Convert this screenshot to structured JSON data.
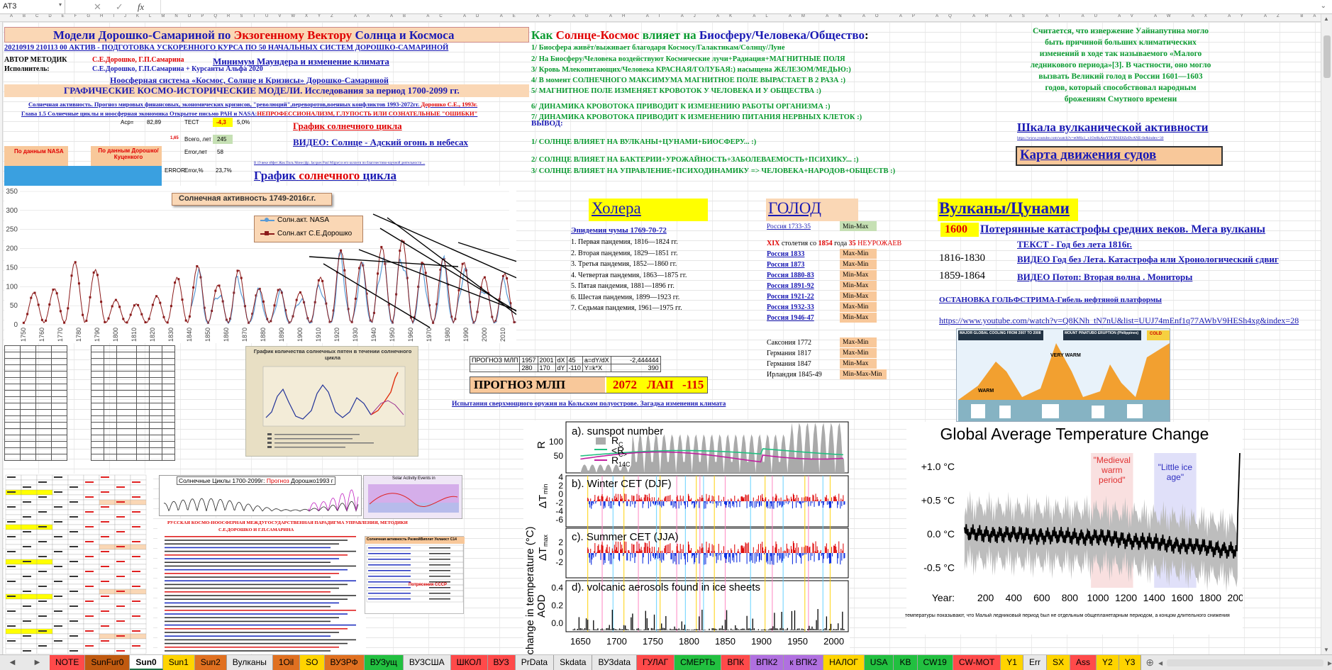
{
  "formula_bar": {
    "cell_ref": "AT3"
  },
  "headers": {
    "title1a": "Модели Дорошко-Самариной по",
    "title1b": "Экзогенному Вектору",
    "title1c": "Солнца и Космоса",
    "line2": "20210919 210113 00 АКТИВ - ПОДГОТОВКА УСКОРЕННОГО КУРСА ПО 50 НАЧАЛЬНЫХ СИСТЕМ ДОРОШКО-САМАРИНОЙ",
    "author_lbl": "АВТОР МЕТОДИК",
    "author_val": "С.Е.Дорошко, Г.П.Самарина",
    "exec_lbl": "Исполнитель:",
    "exec_val": "С.Е.Дорошко, Г.П.Самарина + Курсанты Альфа 2020",
    "maunder": "Минимум Маундера и изменение климата",
    "noosphere": "Ноосферная система «Космос, Солнце и Кризисы» Дорошко-Самариной",
    "graphic_title": "ГРАФИЧЕСКИЕ КОСМО-ИСТОРИЧЕСКИЕ МОДЕЛИ. Исследования за период 1700-2099 гг.",
    "small1": "Солнечная активность. Прогноз мировых финансовых, экономических кризисов, \"революций\",переворотов,военных конфликтов 1993-2072гг.",
    "small1b": "Дорошко С.Е., 1993г.",
    "small2": "Глава 1.5 Солнечные циклы и ноосферная экономика Открытое письмо РАН и NASA:",
    "small2b": "НЕПРОФЕССИОНАЛИЗМ, Г.ЛУПОСТЬ ИЛИ СОЗНАТЕЛЬНЫЕ \"ОШИБКИ\"",
    "graf1": "График солнечного цикла",
    "video1": "ВИДЕО: Солнце - Адский огонь в небесах",
    "graf2a": "График",
    "graf2b": "солнечного",
    "graf2c": "цикла",
    "tiny_note": "В 19 веке эйфет Жак Поль Моне (фр. Jacques Paul Migne) и его коллеги по благочестиво-научной деятельности ..."
  },
  "stats": {
    "acp_lbl": "Аср=",
    "acp_val": "82,89",
    "test_lbl": "ТЕСТ",
    "test_val": "-4,3",
    "test_pct": "5,0%",
    "total_lbl": "Всего, лет",
    "total_val": "245",
    "err_lbl": "Error,лет",
    "err_val": "58",
    "err_word": "ERROR",
    "errpct_lbl": "Error,%",
    "errpct_val": "23,7%",
    "side_num": "1,65"
  },
  "nasa_label": "По данным NASA",
  "kuvenkov_label": "По данным Дорошко/Куценкого",
  "mid_title": {
    "a": "Как",
    "b": "Солнце-Космос",
    "c": "влияет на",
    "d": "Биосферу/Человека/Общество",
    "e": ":"
  },
  "mid_lines": [
    "1/ Биосфера живёт/выживает благодаря Космосу/Галактикам/Солнцу/Луне",
    "2/ На Биосферу/Человека воздействуют Космические лучи+Радиация+МАГНИТНЫЕ ПОЛЯ",
    "3/ Кровь Млекопитающих/Человека КРАСНАЯ/ГОЛУБАЯ:) насыщена ЖЕЛЕЗОМ/МЕДЬЮ:)",
    "4/ В момент СОЛНЕЧНОГО МАКСИМУМА МАГНИТНОЕ ПОЛЕ ВЫРАСТАЕТ В 2 РАЗА :)",
    "5/ МАГНИТНОЕ ПОЛЕ ИЗМЕНЯЕТ КРОВОТОК У ЧЕЛОВЕКА И У ОБЩЕСТВА :)",
    "6/ ДИНАМИКА КРОВОТОКА ПРИВОДИТ К ИЗМЕНЕНИЮ РАБОТЫ ОРГАНИЗМА :)",
    "7/ ДИНАМИКА КРОВОТОКА ПРИВОДИТ К ИЗМЕНЕНИЮ ПИТАНИЯ НЕРВНЫХ КЛЕТОК :)"
  ],
  "vyvod": "ВЫВОД:",
  "vyvod_lines": [
    "1/ СОЛНЦЕ ВЛИЯЕТ НА ВУЛКАНЫ+ЦУНАМИ+БИОСФЕРУ... :)",
    "2/ СОЛНЦЕ ВЛИЯЕТ НА БАКТЕРИИ+УРОЖАЙНОСТЬ+ЗАБОЛЕВАЕМОСТЬ+ПСИХИКУ... :)",
    "3/ СОЛНЦЕ ВЛИЯЕТ НА УПРАВЛЕНИЕ+ПСИХОДИНАМИКУ => ЧЕЛОВЕКА+НАРОДОВ+ОБЩЕСТВ :)"
  ],
  "right_text": [
    "Считается, что извержение Уайнапутина могло",
    "быть причиной больших климатических",
    "изменений в ходе так называемого «Малого",
    "ледникового периода»[3]. В частности, оно могло",
    "вызвать Великий голод в России 1601—1603",
    "годов, который способствовал народным",
    "брожениям Смутного времени"
  ],
  "volcano_scale": "Шкала вулканической активности",
  "volcano_url": "https://www.youtube.com/watch?v=etM6z1_x1Oo0kAnrYfVRNiE8ZeDvANE-0e&index=30",
  "ship_map": "Карта движения судов",
  "solar_chart": {
    "title": "Солнечная активность 1749-2016г.г.",
    "legend": [
      "Солн.акт. NASA",
      "Солн.акт С.Е.Дорошко"
    ],
    "yticks": [
      "350",
      "300",
      "250",
      "200",
      "150",
      "100",
      "50",
      "0"
    ],
    "xticks": [
      "1750",
      "1760",
      "1770",
      "1780",
      "1790",
      "1800",
      "1810",
      "1820",
      "1830",
      "1840",
      "1850",
      "1860",
      "1870",
      "1880",
      "1890",
      "1900",
      "1910",
      "1920",
      "1930",
      "1940",
      "1950",
      "1960",
      "1970",
      "1980",
      "1990",
      "2000",
      "2010"
    ]
  },
  "cholera": {
    "title": "Холера",
    "subtitle": "Эпидемия чумы 1769-70-72",
    "items": [
      "1. Первая пандемия, 1816—1824 гг.",
      "2. Вторая пандемия, 1829—1851 гг.",
      "3. Третья пандемия, 1852—1860 гг.",
      "4. Четвертая пандемия, 1863—1875 гг.",
      "5. Пятая пандемия, 1881—1896 гг.",
      "6. Шестая пандемия, 1899—1923 гг.",
      "7. Седьмая пандемия, 1961—1975 гг."
    ]
  },
  "famine": {
    "title": "ГОЛОД",
    "russia_1733": "Россия 1733-35",
    "minmax": "Min-Max",
    "xix_a": "XIX",
    "xix_b": "столетия со",
    "xix_c": "1854",
    "xix_d": "года",
    "xix_e": "35",
    "xix_f": "НЕУРОЖАЕВ",
    "rows": [
      [
        "Россия 1833",
        "Max-Min"
      ],
      [
        "Россия 1873",
        "Max-Min"
      ],
      [
        "Россия 1880-83",
        "Min-Max"
      ],
      [
        "Россия 1891-92",
        "Min-Max"
      ],
      [
        "Россия 1921-22",
        "Min-Max"
      ],
      [
        "Россия 1932-33",
        "Max-Min"
      ],
      [
        "Россия 1946-47",
        "Min-Max"
      ]
    ],
    "plain_rows": [
      [
        "Саксония 1772",
        "Max-Min"
      ],
      [
        "Германия 1817",
        "Max-Min"
      ],
      [
        "Германия 1847",
        "Min-Max"
      ],
      [
        "Ирландия 1845-49",
        "Min-Max-Min"
      ]
    ]
  },
  "volcanoes": {
    "title": "Вулканы/Цунами",
    "year": "1600",
    "lost": "Потерянные катастрофы средних веков. Мега вулканы",
    "text_link": "ТЕКСТ - Год без лета 1816г.",
    "r1_year": "1816-1830",
    "r1_link": "ВИДЕО Год без Лета. Катастрофа или Хронологический сдвиг",
    "r2_year": "1859-1864",
    "r2_link": "ВИДЕО Потоп: Вторая волна . Мониторы",
    "gulf": "ОСТАНОВКА ГОЛЬФСТРИМА-Гибель нефтяной платформы",
    "yt": "https://www.youtube.com/watch?v=Q8KNh_tN7nU&list=UUJ74mEnf1q77AWbV9HESh4xg&index=28"
  },
  "forecast": {
    "lbl": "ПРОГНОЗ МЛП",
    "a": "1957",
    "b": "2001",
    "dx": "dX",
    "v45": "45",
    "adydx": "a=dY/dX",
    "v1": "-2,444444",
    "c": "280",
    "d": "170",
    "dy": "dY",
    "v110": "-110",
    "ykx": "Y=k*X",
    "v390": "390",
    "big_lbl": "ПРОГНОЗ МЛП",
    "big_year": "2072",
    "lap": "ЛАП",
    "big_val": "-115"
  },
  "kola": "Испытания сверхмощного оружия на Кольском полуострове. Загадка изменения климата",
  "sunspot_thumb": {
    "title": "График количества солнечных пятен в течении солнечного цикла"
  },
  "cycles_thumb": {
    "title_a": "Солнечные Циклы 1700-2099г:",
    "title_b": "Прогноз",
    "title_c": "Дорошко1993 г"
  },
  "activity_thumb": {
    "title": "Solar Activity Events in"
  },
  "doc_thumb": {
    "title": "РУССКАЯ КОСМО-НООСФЕРНАЯ МЕЖДУГОСУДАРСТВЕННАЯ ПАРАДИГМА УПРАВЛЕНИЯ, МЕТОДИКИ",
    "sub": "С.Е.ДОРОШКО И Г.П.САМАРИНА",
    "table_title": "Солнечная активность РазвойВиплит Уклаюст С14",
    "red_lbl": "Потрясения СССР"
  },
  "eruption_thumb": {
    "title": "MAJOR GLOBAL COOLING FROM 2007 TO 2008",
    "sub": "MOUNT PINATUBO ERUPTION (Philippines)",
    "warm": "WARM",
    "very_warm": "VERY WARM",
    "cold": "COLD"
  },
  "cet_panels": {
    "a": "a). sunspot number",
    "b": "b). Winter CET (DJF)",
    "c": "c). Summer CET (JJA)",
    "d": "d). volcanic aerosols found in ice sheets",
    "ylabel_main": "change in temperature (°C)",
    "r_lbl": "R",
    "aod_lbl": "AOD",
    "a_ticks": [
      "100",
      "50"
    ],
    "b_ticks": [
      "4",
      "2",
      "0",
      "-2",
      "-4",
      "-6"
    ],
    "c_ticks": [
      "2",
      "0",
      "-2"
    ],
    "d_ticks": [
      "0.4",
      "0.2",
      "0.0"
    ],
    "xticks": [
      "1650",
      "1700",
      "1750",
      "1800",
      "1850",
      "1900",
      "1950",
      "2000"
    ],
    "legend": [
      "R",
      "<R",
      "R"
    ],
    "legend_sub": [
      "C",
      "C>",
      "14C"
    ],
    "dt_min": "ΔT",
    "dt_min_sub": "min",
    "dt_max": "ΔT",
    "dt_max_sub": "max"
  },
  "temp_chart": {
    "title": "Global Average Temperature Change",
    "yticks": [
      "+1.0 °C",
      "+0.5 °C",
      "0.0 °C",
      "-0.5 °C"
    ],
    "xlabel": "Year:",
    "xticks": [
      "200",
      "400",
      "600",
      "800",
      "1000",
      "1200",
      "1400",
      "1600",
      "1800",
      "2000"
    ],
    "medieval": "\"Medieval warm period\"",
    "little": "\"Little ice age\"",
    "caption": "температуры показывают, что Малый ледниковый период был не отдельным общепланетарным периодом, а концом длительного снижения"
  },
  "tabs": [
    "NOTE",
    "SunFur0",
    "Sun0",
    "Sun1",
    "Sun2",
    "Вулканы",
    "1Oil",
    "SO",
    "ВУЗРФ",
    "ВУЗущ",
    "ВУЗСША",
    "ШКОЛ",
    "ВУЗ",
    "PrData",
    "Skdata",
    "ВУЗdata",
    "ГУЛАГ",
    "СМЕРТЬ",
    "ВПК",
    "ВПК2",
    "к ВПК2",
    "НАЛОГ",
    "USA",
    "KB",
    "CW19",
    "CW-МОТ",
    "Y1",
    "Err",
    "SX",
    "Ass",
    "Y2",
    "Y3"
  ],
  "tab_colors": [
    "#ff4a4a",
    "#c05a10",
    "#ffffff",
    "#ffd400",
    "#e07020",
    "#e8e8e8",
    "#e07020",
    "#ffd400",
    "#e07020",
    "#22c040",
    "#e8e8e8",
    "#ff4a4a",
    "#ff4a4a",
    "#e8e8e8",
    "#e8e8e8",
    "#e8e8e8",
    "#ff4a4a",
    "#22c040",
    "#ff4a4a",
    "#b070e0",
    "#b070e0",
    "#ffd400",
    "#22c040",
    "#22c040",
    "#22c040",
    "#ff4a4a",
    "#ffd400",
    "#e8e8e8",
    "#ffd400",
    "#ff4a4a",
    "#ffd400",
    "#ffd400"
  ]
}
